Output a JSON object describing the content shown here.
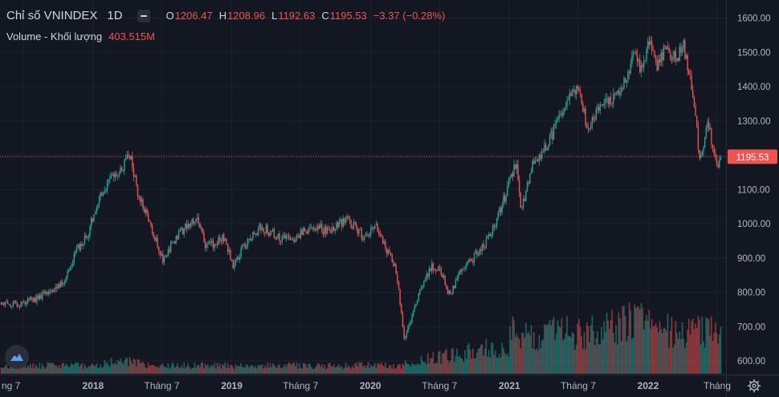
{
  "header": {
    "symbol": "Chỉ số VNINDEX",
    "interval": "1D",
    "o_label": "O",
    "o_value": "1206.47",
    "h_label": "H",
    "h_value": "1208.96",
    "l_label": "L",
    "l_value": "1192.63",
    "c_label": "C",
    "c_value": "1195.53",
    "change": "−3.37 (−0.28%)",
    "volume_label": "Volume - Khối lượng",
    "volume_value": "403.515M"
  },
  "colors": {
    "background": "#131722",
    "grid": "#1f2330",
    "up": "#26a69a",
    "down": "#ef5350",
    "text": "#d1d4dc",
    "axis_text": "#b2b5be"
  },
  "icons": {
    "logo": "tradingview-logo-icon",
    "settings": "gear-icon"
  },
  "chart_data": {
    "type": "candlestick",
    "interval": "1D",
    "y_axis": {
      "position": "right",
      "ticks": [
        "1600.00",
        "1500.00",
        "1400.00",
        "1300.00",
        "1200.00",
        "1100.00",
        "1000.00",
        "900.00",
        "800.00",
        "700.00",
        "600.00"
      ],
      "range": [
        575,
        1635
      ]
    },
    "x_axis": {
      "ticks": [
        "ng 7",
        "2018",
        "Tháng 7",
        "2019",
        "Tháng 7",
        "2020",
        "Tháng 7",
        "2021",
        "Tháng 7",
        "2022",
        "Tháng"
      ],
      "tick_dates": [
        "2017-07-01",
        "2018-01-01",
        "2018-07-01",
        "2019-01-01",
        "2019-07-01",
        "2020-01-01",
        "2020-07-01",
        "2021-01-01",
        "2021-07-01",
        "2022-01-01",
        "2022-07-01"
      ],
      "range": [
        "2017-05-01",
        "2022-07-25"
      ]
    },
    "last_price": {
      "value": 1195.53,
      "label": "1195.53"
    },
    "price_path": [
      [
        "2017-05-01",
        770
      ],
      [
        "2017-06-15",
        765
      ],
      [
        "2017-08-01",
        780
      ],
      [
        "2017-09-15",
        805
      ],
      [
        "2017-10-20",
        840
      ],
      [
        "2017-11-20",
        930
      ],
      [
        "2017-12-15",
        960
      ],
      [
        "2018-01-15",
        1070
      ],
      [
        "2018-02-10",
        1120
      ],
      [
        "2018-03-05",
        1140
      ],
      [
        "2018-04-09",
        1204
      ],
      [
        "2018-05-01",
        1080
      ],
      [
        "2018-06-01",
        1000
      ],
      [
        "2018-07-05",
        890
      ],
      [
        "2018-07-25",
        940
      ],
      [
        "2018-09-01",
        990
      ],
      [
        "2018-10-01",
        1020
      ],
      [
        "2018-10-25",
        930
      ],
      [
        "2018-12-10",
        960
      ],
      [
        "2019-01-05",
        880
      ],
      [
        "2019-02-10",
        950
      ],
      [
        "2019-03-20",
        990
      ],
      [
        "2019-05-10",
        960
      ],
      [
        "2019-06-15",
        960
      ],
      [
        "2019-08-01",
        990
      ],
      [
        "2019-09-15",
        980
      ],
      [
        "2019-11-01",
        1015
      ],
      [
        "2019-12-10",
        965
      ],
      [
        "2020-01-20",
        990
      ],
      [
        "2020-02-10",
        930
      ],
      [
        "2020-03-10",
        860
      ],
      [
        "2020-03-31",
        660
      ],
      [
        "2020-05-01",
        780
      ],
      [
        "2020-06-10",
        880
      ],
      [
        "2020-07-05",
        860
      ],
      [
        "2020-07-28",
        790
      ],
      [
        "2020-08-20",
        850
      ],
      [
        "2020-10-01",
        905
      ],
      [
        "2020-11-10",
        960
      ],
      [
        "2020-12-20",
        1080
      ],
      [
        "2021-01-20",
        1185
      ],
      [
        "2021-02-01",
        1030
      ],
      [
        "2021-03-01",
        1170
      ],
      [
        "2021-04-15",
        1240
      ],
      [
        "2021-06-01",
        1350
      ],
      [
        "2021-07-02",
        1410
      ],
      [
        "2021-07-26",
        1270
      ],
      [
        "2021-08-25",
        1340
      ],
      [
        "2021-09-20",
        1350
      ],
      [
        "2021-10-20",
        1390
      ],
      [
        "2021-11-25",
        1490
      ],
      [
        "2021-12-15",
        1450
      ],
      [
        "2022-01-04",
        1525
      ],
      [
        "2022-01-20",
        1460
      ],
      [
        "2022-02-15",
        1505
      ],
      [
        "2022-03-15",
        1480
      ],
      [
        "2022-04-04",
        1520
      ],
      [
        "2022-04-20",
        1430
      ],
      [
        "2022-05-05",
        1320
      ],
      [
        "2022-05-17",
        1175
      ],
      [
        "2022-06-08",
        1300
      ],
      [
        "2022-06-25",
        1180
      ],
      [
        "2022-07-10",
        1170
      ],
      [
        "2022-07-25",
        1195.53
      ]
    ],
    "volume_series": {
      "name": "Volume - Khối lượng",
      "latest": "403.515M"
    }
  }
}
